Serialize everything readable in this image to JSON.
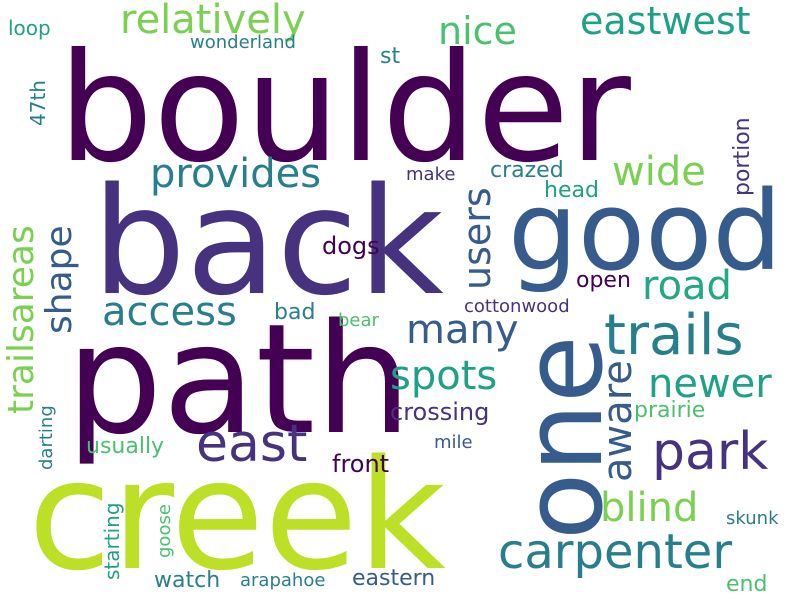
{
  "palette": {
    "deep_purple": "#440154",
    "indigo": "#46327e",
    "slate_blue": "#365c8d",
    "teal_blue": "#277f8e",
    "teal": "#1fa187",
    "green": "#4ac16d",
    "lime": "#a0da39",
    "yellow_green": "#bddf26",
    "background": "#ffffff"
  },
  "words": {
    "boulder": "boulder",
    "back": "back",
    "path": "path",
    "creek": "creek",
    "good": "good",
    "one": "one",
    "carpenter": "carpenter",
    "trails": "trails",
    "park": "park",
    "east": "east",
    "relatively": "relatively",
    "eastwest": "eastwest",
    "nice": "nice",
    "provides": "provides",
    "wide": "wide",
    "access": "access",
    "road": "road",
    "many": "many",
    "spots": "spots",
    "newer": "newer",
    "blind": "blind",
    "users": "users",
    "shape": "shape",
    "trailsareas": "trailsareas",
    "aware": "aware",
    "portion": "portion",
    "crossing": "crossing",
    "front": "front",
    "dogs": "dogs",
    "open": "open",
    "crazed": "crazed",
    "head": "head",
    "make": "make",
    "cottonwood": "cottonwood",
    "bad": "bad",
    "bear": "bear",
    "prairie": "prairie",
    "usually": "usually",
    "mile": "mile",
    "wonderland": "wonderland",
    "loop": "loop",
    "st": "st",
    "47th": "47th",
    "darting": "darting",
    "starting": "starting",
    "goose": "goose",
    "watch": "watch",
    "arapahoe": "arapahoe",
    "eastern": "eastern",
    "skunk": "skunk",
    "end": "end"
  }
}
